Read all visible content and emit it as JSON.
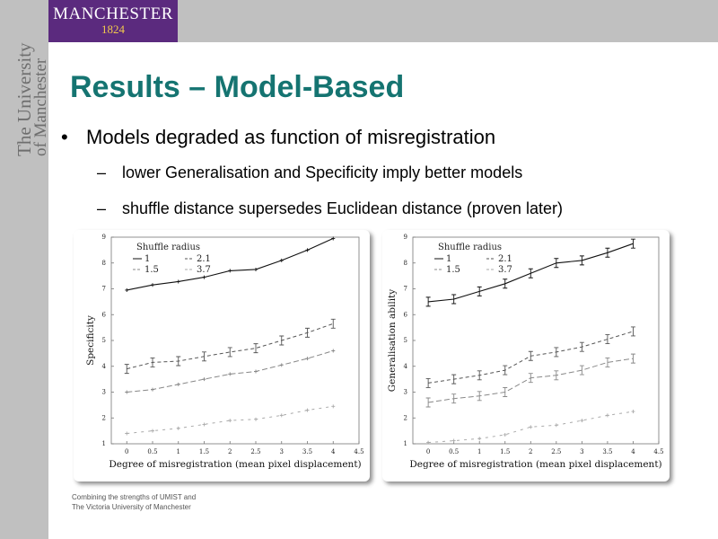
{
  "logo": {
    "name": "MANCHESTER",
    "year": "1824"
  },
  "sidebar_text": {
    "line1": "The University",
    "line2": "of Manchester"
  },
  "title": "Results – Model-Based",
  "bullet": {
    "symbol": "•",
    "text": "Models degraded as function of misregistration"
  },
  "subbullets": [
    {
      "dash": "–",
      "text": "lower Generalisation and Specificity imply better models"
    },
    {
      "dash": "–",
      "text": "shuffle distance supersedes Euclidean distance (proven later)"
    }
  ],
  "footer": {
    "line1": "Combining the strengths of UMIST and",
    "line2": "The Victoria University of Manchester"
  },
  "chart_data": [
    {
      "type": "line",
      "xlabel": "Degree of misregistration (mean pixel displacement)",
      "ylabel": "Specificity",
      "x_ticks": [
        "0",
        "0.5",
        "1",
        "1.5",
        "2",
        "2.5",
        "3",
        "3.5",
        "4",
        "4.5"
      ],
      "y_ticks": [
        "1",
        "2",
        "3",
        "4",
        "5",
        "6",
        "7",
        "8",
        "9"
      ],
      "xlim": [
        -0.3,
        4.5
      ],
      "ylim": [
        1,
        9
      ],
      "legend": {
        "title": "Shuffle radius",
        "entries": [
          "1",
          "2.1",
          "1.5",
          "3.7"
        ],
        "position": "top-left"
      },
      "x": [
        0,
        0.5,
        1,
        1.5,
        2,
        2.5,
        3,
        3.5,
        4
      ],
      "series": [
        {
          "name": "1",
          "values": [
            6.95,
            7.15,
            7.28,
            7.45,
            7.7,
            7.75,
            8.1,
            8.5,
            8.95
          ],
          "errorbar": false
        },
        {
          "name": "1.5",
          "values": [
            3.9,
            4.15,
            4.2,
            4.38,
            4.55,
            4.7,
            5.0,
            5.3,
            5.65
          ],
          "errorbar": true
        },
        {
          "name": "2.1",
          "values": [
            3.0,
            3.1,
            3.3,
            3.5,
            3.7,
            3.8,
            4.05,
            4.3,
            4.6
          ],
          "errorbar": false
        },
        {
          "name": "3.7",
          "values": [
            1.4,
            1.5,
            1.6,
            1.75,
            1.9,
            1.95,
            2.1,
            2.3,
            2.45
          ],
          "errorbar": false
        }
      ]
    },
    {
      "type": "line",
      "xlabel": "Degree of misregistration (mean pixel displacement)",
      "ylabel": "Generalisation ability",
      "x_ticks": [
        "0",
        "0.5",
        "1",
        "1.5",
        "2",
        "2.5",
        "3",
        "3.5",
        "4",
        "4.5"
      ],
      "y_ticks": [
        "1",
        "2",
        "3",
        "4",
        "5",
        "6",
        "7",
        "8",
        "9"
      ],
      "xlim": [
        -0.3,
        4.5
      ],
      "ylim": [
        1,
        9
      ],
      "legend": {
        "title": "Shuffle radius",
        "entries": [
          "1",
          "2.1",
          "1.5",
          "3.7"
        ],
        "position": "top-left"
      },
      "x": [
        0,
        0.5,
        1,
        1.5,
        2,
        2.5,
        3,
        3.5,
        4
      ],
      "series": [
        {
          "name": "1",
          "values": [
            6.5,
            6.6,
            6.9,
            7.2,
            7.6,
            8.0,
            8.1,
            8.4,
            8.75
          ],
          "errorbar": true
        },
        {
          "name": "1.5",
          "values": [
            3.35,
            3.5,
            3.65,
            3.85,
            4.4,
            4.55,
            4.75,
            5.05,
            5.35
          ],
          "errorbar": true
        },
        {
          "name": "2.1",
          "values": [
            2.6,
            2.75,
            2.85,
            3.0,
            3.55,
            3.65,
            3.85,
            4.15,
            4.3
          ],
          "errorbar": true
        },
        {
          "name": "3.7",
          "values": [
            1.05,
            1.12,
            1.2,
            1.35,
            1.65,
            1.72,
            1.9,
            2.1,
            2.25
          ],
          "errorbar": false
        }
      ]
    }
  ]
}
